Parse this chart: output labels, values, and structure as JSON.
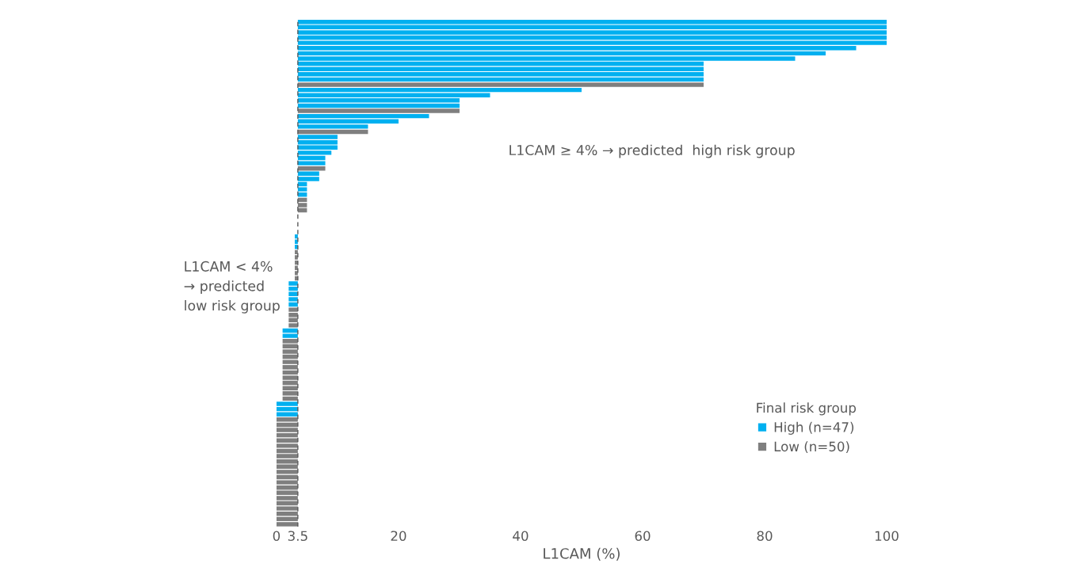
{
  "chart_data": {
    "type": "bar",
    "orientation": "horizontal",
    "xlabel": "L1CAM (%)",
    "legend_title": "Final risk group",
    "legend": "bottom right",
    "categories": [
      null,
      null,
      null,
      null,
      null,
      null,
      null,
      null,
      null,
      null,
      null,
      null,
      null,
      null,
      null,
      null,
      null,
      null,
      null,
      null,
      null,
      null,
      null,
      null,
      null,
      null,
      null,
      null,
      null,
      null,
      null,
      null,
      null,
      null,
      null,
      null,
      null,
      null,
      null,
      null,
      null,
      null,
      null,
      null,
      null,
      null,
      null,
      null,
      null,
      null,
      null,
      null,
      null,
      null,
      null,
      null,
      null,
      null,
      null,
      null,
      null,
      null,
      null,
      null,
      null,
      null,
      null,
      null,
      null,
      null,
      null,
      null,
      null,
      null,
      null,
      null,
      null,
      null,
      null,
      null,
      null,
      null,
      null,
      null,
      null,
      null,
      null,
      null,
      null,
      null,
      null,
      null,
      null,
      null,
      null,
      null,
      null
    ],
    "series": [
      {
        "name": "High (n=47)",
        "color": "#00b0f0",
        "base": [
          3.5,
          3.5,
          3.5,
          3.5,
          3.5,
          3.5,
          3.5,
          3.5,
          3.5,
          3.5,
          3.5,
          3.5,
          null,
          3.5,
          3.5,
          3.5,
          3.5,
          null,
          3.5,
          3.5,
          3.5,
          null,
          3.5,
          3.5,
          3.5,
          3.5,
          3.5,
          3.5,
          null,
          3.5,
          3.5,
          3.5,
          3.5,
          3.5,
          null,
          null,
          null,
          null,
          null,
          null,
          null,
          3.5,
          3.5,
          3.5,
          null,
          null,
          null,
          null,
          null,
          null,
          3.5,
          3.5,
          3.5,
          3.5,
          3.5,
          null,
          null,
          null,
          null,
          3.5,
          3.5,
          null,
          null,
          null,
          null,
          null,
          null,
          null,
          null,
          null,
          null,
          null,
          null,
          3.5,
          3.5,
          3.5,
          null,
          null,
          null,
          null,
          null,
          null,
          null,
          null,
          null,
          null,
          null,
          null,
          null,
          null,
          null,
          null,
          null,
          null,
          null,
          null,
          null
        ],
        "values": [
          96.5,
          96.5,
          96.5,
          96.5,
          96.5,
          91.5,
          86.5,
          81.5,
          66.5,
          66.5,
          66.5,
          66.5,
          null,
          46.5,
          31.5,
          26.5,
          26.5,
          null,
          21.5,
          16.5,
          11.5,
          null,
          6.5,
          6.5,
          6.5,
          5.5,
          4.5,
          4.5,
          null,
          3.5,
          3.5,
          1.5,
          1.5,
          1.5,
          null,
          null,
          null,
          null,
          null,
          null,
          null,
          -0.5,
          -0.5,
          -0.5,
          null,
          null,
          null,
          null,
          null,
          null,
          -1.5,
          -1.5,
          -1.5,
          -1.5,
          -1.5,
          null,
          null,
          null,
          null,
          -2.5,
          -2.5,
          null,
          null,
          null,
          null,
          null,
          null,
          null,
          null,
          null,
          null,
          null,
          null,
          -3.5,
          -3.5,
          -3.5,
          null,
          null,
          null,
          null,
          null,
          null,
          null,
          null,
          null,
          null,
          null,
          null,
          null,
          null,
          null,
          null,
          null,
          null,
          null,
          null,
          null
        ]
      },
      {
        "name": "Low (n=50)",
        "color": "#7f7f7f",
        "base": [
          null,
          null,
          null,
          null,
          null,
          null,
          null,
          null,
          null,
          null,
          null,
          null,
          3.5,
          null,
          null,
          null,
          null,
          3.5,
          null,
          null,
          null,
          3.5,
          null,
          null,
          null,
          null,
          null,
          null,
          3.5,
          null,
          null,
          null,
          null,
          null,
          3.5,
          3.5,
          3.5,
          null,
          null,
          null,
          null,
          null,
          null,
          null,
          3.5,
          3.5,
          3.5,
          3.5,
          3.5,
          3.5,
          null,
          null,
          null,
          null,
          null,
          3.5,
          3.5,
          3.5,
          3.5,
          null,
          null,
          3.5,
          3.5,
          3.5,
          3.5,
          3.5,
          3.5,
          3.5,
          3.5,
          3.5,
          3.5,
          3.5,
          3.5,
          null,
          null,
          null,
          3.5,
          3.5,
          3.5,
          3.5,
          3.5,
          3.5,
          3.5,
          3.5,
          3.5,
          3.5,
          3.5,
          3.5,
          3.5,
          3.5,
          3.5,
          3.5,
          3.5,
          3.5,
          3.5,
          3.5,
          3.5
        ],
        "values": [
          null,
          null,
          null,
          null,
          null,
          null,
          null,
          null,
          null,
          null,
          null,
          null,
          66.5,
          null,
          null,
          null,
          null,
          26.5,
          null,
          null,
          null,
          11.5,
          null,
          null,
          null,
          null,
          null,
          null,
          4.5,
          null,
          null,
          null,
          null,
          null,
          1.5,
          1.5,
          1.5,
          null,
          null,
          null,
          null,
          null,
          null,
          null,
          -0.5,
          -0.5,
          -0.5,
          -0.5,
          -0.5,
          -0.5,
          null,
          null,
          null,
          null,
          null,
          -1.5,
          -1.5,
          -1.5,
          -1.5,
          null,
          null,
          -2.5,
          -2.5,
          -2.5,
          -2.5,
          -2.5,
          -2.5,
          -2.5,
          -2.5,
          -2.5,
          -2.5,
          -2.5,
          -2.5,
          null,
          null,
          null,
          -3.5,
          -3.5,
          -3.5,
          -3.5,
          -3.5,
          -3.5,
          -3.5,
          -3.5,
          -3.5,
          -3.5,
          -3.5,
          -3.5,
          -3.5,
          -3.5,
          -3.5,
          -3.5,
          -3.5,
          -3.5,
          -3.5,
          -3.5,
          -3.5
        ]
      }
    ],
    "xlim": [
      0,
      100
    ],
    "xticks": [
      0,
      3.5,
      20,
      40,
      60,
      80,
      100
    ],
    "tick_labels": "x",
    "ref_lines": [
      {
        "axis": "x",
        "value": 3.5,
        "color": "#595959",
        "line_style": "dashed"
      }
    ],
    "annotations": [
      "L1CAM ≥ 4% → predicted  high risk group",
      "L1CAM < 4%\n→ predicted\nlow risk group"
    ]
  }
}
